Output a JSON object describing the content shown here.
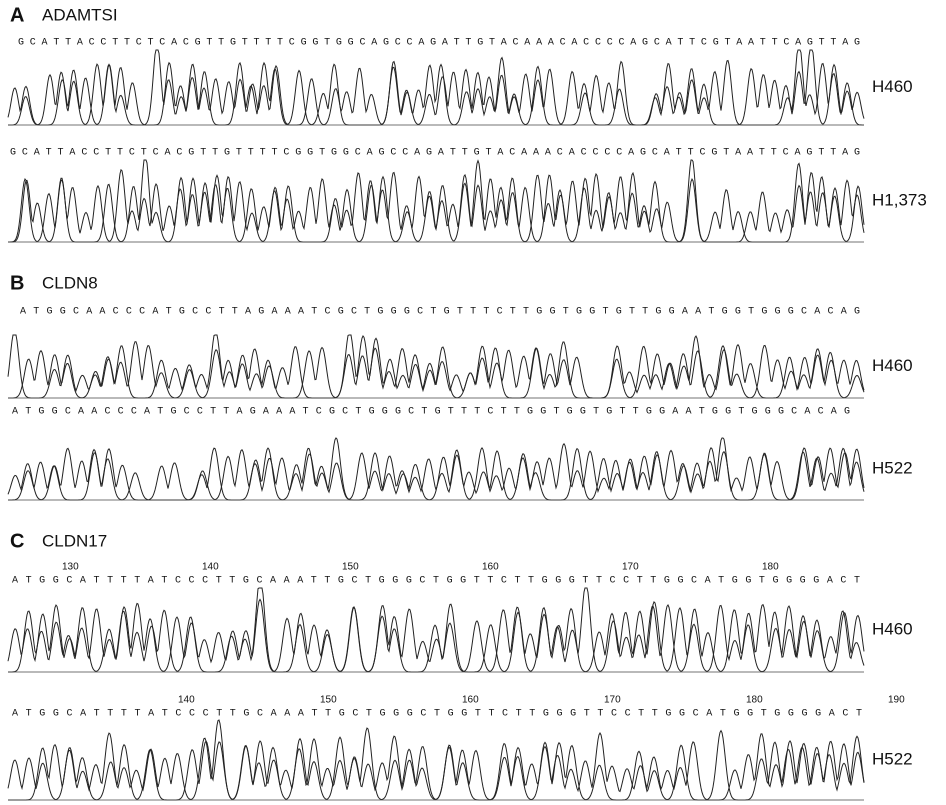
{
  "panels": [
    {
      "letter": "A",
      "gene": "ADAMTSI",
      "tracks": [
        {
          "sequence": "GCATTACCTTCTCACGTTGTTTTCGGTGGCAGCCAGATTGTACAAACACCCCAGCATTCGTAATTCAGTTAG",
          "label": "H460"
        },
        {
          "sequence": "GCATTACCTTCTCACGTTGTTTTCGGTGGCAGCCAGATTGTACAAACACCCCAGCATTCGTAATTCAGTTAG",
          "label": "H1,373"
        }
      ]
    },
    {
      "letter": "B",
      "gene": "CLDN8",
      "tracks": [
        {
          "sequence": "ATGGCAACCCATGCCTTAGAAATCGCTGGGCTGTTTCTTGGTGGTGTTGGAATGGTGGGCACAG",
          "label": "H460"
        },
        {
          "sequence": "ATGGCAACCCATGCCTTAGAAATCGCTGGGCTGTTTCTTGGTGGTGTTGGAATGGTGGGCACAG",
          "label": "H522"
        }
      ]
    },
    {
      "letter": "C",
      "gene": "CLDN17",
      "tracks": [
        {
          "positions": [
            130,
            140,
            150,
            160,
            170,
            180
          ],
          "sequence": "ATGGCATTTTATCCCTTGCAAATTGCTGGGCTGGTTCTTGGGTTCCTTGGCATGGTGGGGACT",
          "label": "H460"
        },
        {
          "positions": [
            140,
            150,
            160,
            170,
            180,
            190
          ],
          "sequence": "ATGGCATTTTATCCCTTGCAAATTGCTGGGCTGGTTCTTGGGTTCCTTGGCATGGTGGGGACT",
          "label": "H522"
        }
      ]
    }
  ]
}
